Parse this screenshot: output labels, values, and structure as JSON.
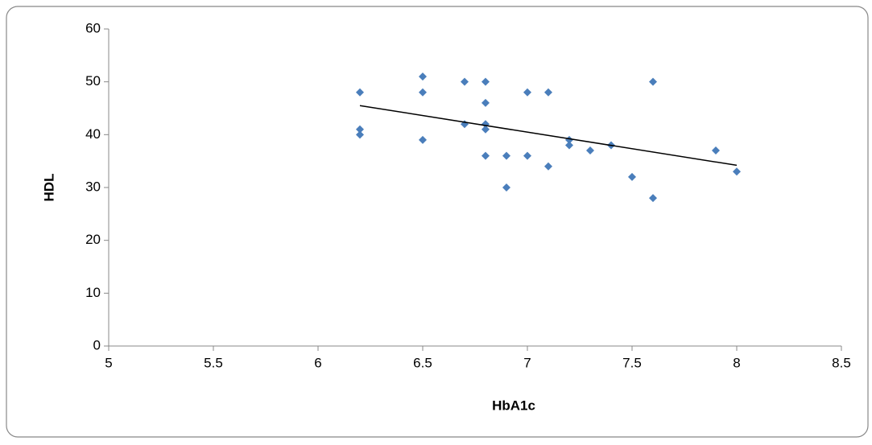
{
  "chart_data": {
    "type": "scatter",
    "xlabel": "HbA1c",
    "ylabel": "HDL",
    "x": [
      6.2,
      6.2,
      6.2,
      6.5,
      6.5,
      6.5,
      6.7,
      6.7,
      6.8,
      6.8,
      6.8,
      6.8,
      6.8,
      6.9,
      6.9,
      7.0,
      7.0,
      7.1,
      7.1,
      7.2,
      7.2,
      7.3,
      7.4,
      7.5,
      7.6,
      7.6,
      7.9,
      8.0
    ],
    "values": [
      48,
      41,
      40,
      51,
      48,
      39,
      50,
      42,
      50,
      46,
      42,
      41,
      36,
      36,
      30,
      48,
      36,
      48,
      34,
      39,
      38,
      37,
      38,
      32,
      50,
      28,
      37,
      33
    ],
    "color": "#4a7ebb",
    "trendline": {
      "x": [
        6.2,
        8.0
      ],
      "values": [
        45.5,
        34.2
      ],
      "color": "#000000"
    },
    "xlim": [
      5,
      8.5
    ],
    "xticks": [
      5,
      5.5,
      6,
      6.5,
      7,
      7.5,
      8,
      8.5
    ],
    "ylim": [
      0,
      60
    ],
    "yticks": [
      0,
      10,
      20,
      30,
      40,
      50,
      60
    ],
    "grid": false
  }
}
